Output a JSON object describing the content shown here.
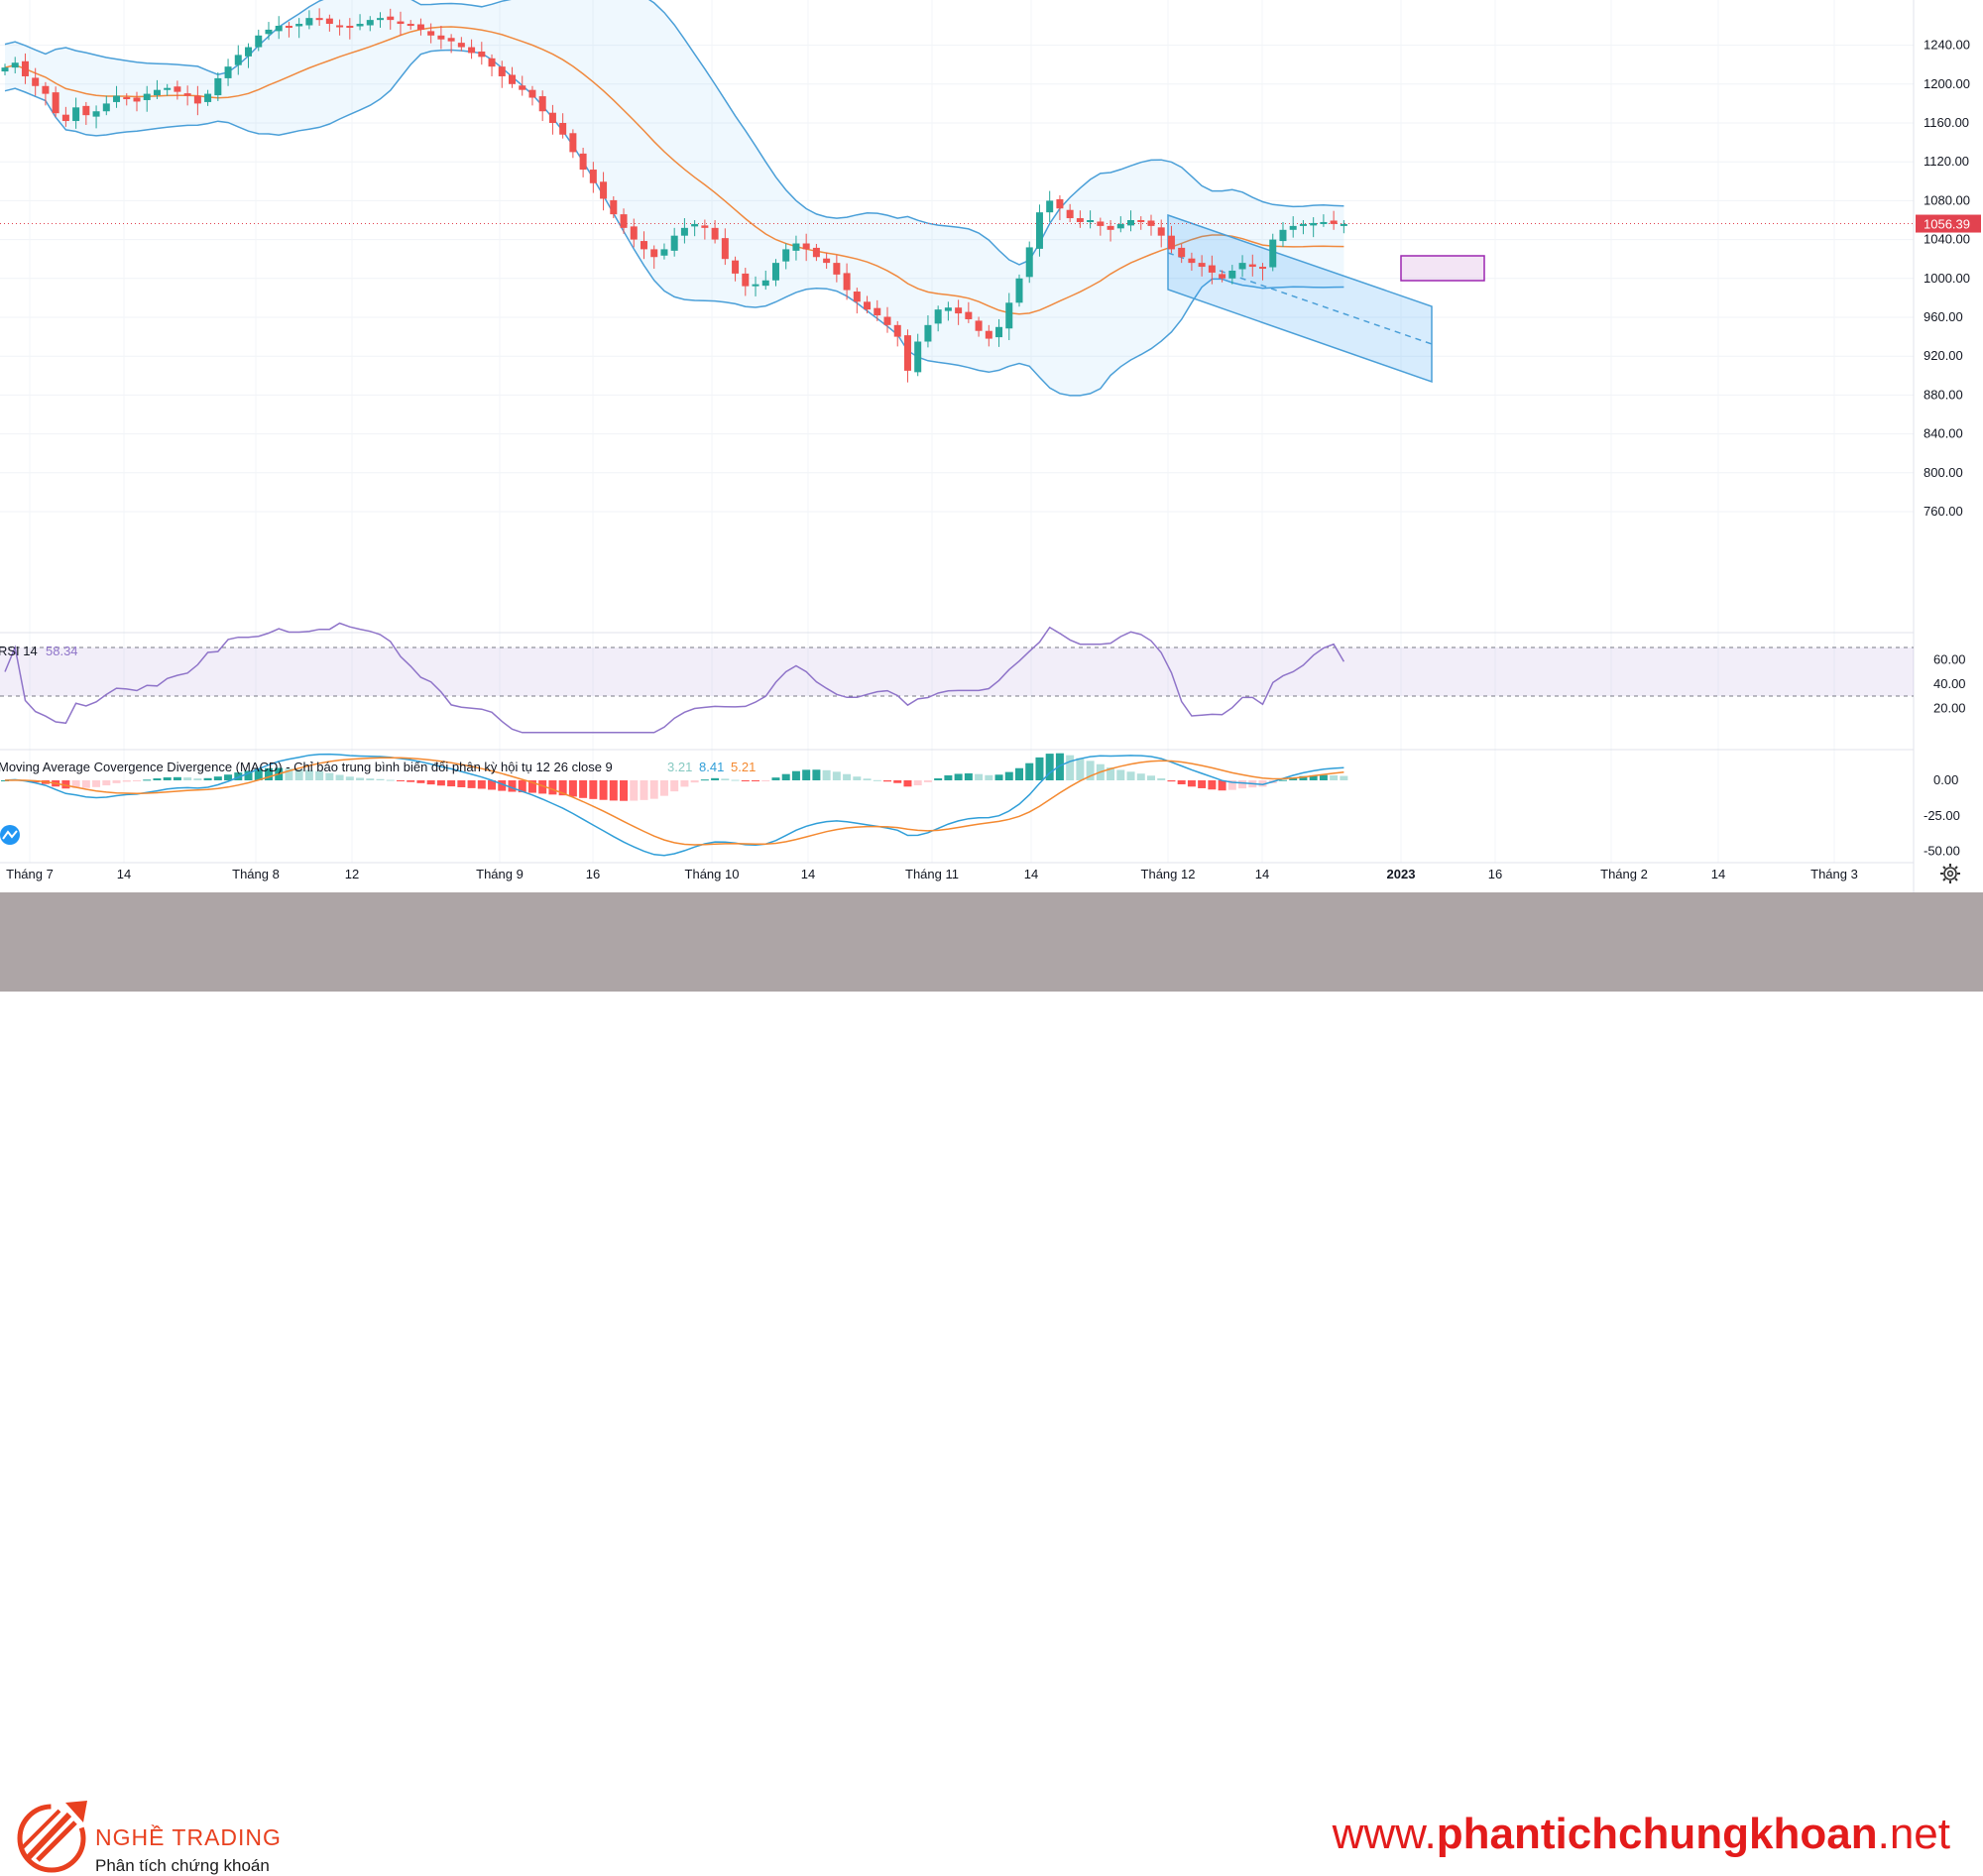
{
  "chart_data": {
    "type": "candlestick",
    "x_tick_labels": [
      "Tháng 7",
      "14",
      "Tháng 8",
      "12",
      "Tháng 9",
      "16",
      "Tháng 10",
      "14",
      "Tháng 11",
      "14",
      "Tháng 12",
      "14",
      "2023",
      "16",
      "Tháng 2",
      "14",
      "Tháng 3"
    ],
    "price_axis": {
      "ticks": [
        "1240.00",
        "1200.00",
        "1160.00",
        "1120.00",
        "1080.00",
        "1040.00",
        "1000.00",
        "960.00",
        "920.00",
        "880.00",
        "840.00",
        "800.00",
        "760.00"
      ],
      "range": [
        752,
        1272
      ]
    },
    "last_price_label": "1056.39",
    "last_price": 1056.39,
    "closes": [
      1217,
      1222,
      1208,
      1198,
      1190,
      1170,
      1162,
      1176,
      1168,
      1172,
      1180,
      1188,
      1186,
      1182,
      1190,
      1194,
      1196,
      1192,
      1188,
      1180,
      1190,
      1206,
      1218,
      1230,
      1238,
      1250,
      1256,
      1260,
      1258,
      1262,
      1268,
      1266,
      1262,
      1260,
      1258,
      1262,
      1266,
      1268,
      1266,
      1262,
      1260,
      1256,
      1250,
      1246,
      1244,
      1238,
      1232,
      1228,
      1218,
      1208,
      1200,
      1194,
      1186,
      1172,
      1160,
      1148,
      1130,
      1112,
      1098,
      1082,
      1066,
      1052,
      1040,
      1030,
      1022,
      1030,
      1044,
      1052,
      1056,
      1052,
      1040,
      1020,
      1005,
      992,
      994,
      998,
      1016,
      1030,
      1036,
      1030,
      1022,
      1016,
      1004,
      988,
      976,
      968,
      962,
      952,
      940,
      905,
      935,
      952,
      968,
      970,
      964,
      958,
      946,
      938,
      950,
      975,
      1000,
      1032,
      1068,
      1080,
      1072,
      1062,
      1058,
      1060,
      1054,
      1050,
      1056,
      1060,
      1058,
      1054,
      1044,
      1030,
      1022,
      1016,
      1012,
      1006,
      1000,
      1008,
      1016,
      1012,
      1010,
      1040,
      1050,
      1054,
      1056,
      1057,
      1058,
      1056,
      1056
    ],
    "series": [
      {
        "name": "RSI 14",
        "last_value": "58.34",
        "range": [
          0,
          100
        ],
        "upper_band": 70,
        "lower_band": 30,
        "ticks": [
          "60.00",
          "40.00",
          "20.00"
        ]
      },
      {
        "name": "Moving Average Covergence Divergence (MACD) - Chỉ báo trung bình biến đổi phân kỳ hội tụ 12 26 close 9",
        "values_label": [
          "3.21",
          "8.41",
          "5.21"
        ],
        "ticks": [
          "0.00",
          "-25.00",
          "-50.00"
        ],
        "range": [
          -62,
          38
        ]
      }
    ],
    "colors": {
      "up": "#26a69a",
      "down": "#ef5350",
      "band": "#4a9fd8",
      "basis": "#f0893e",
      "rsi": "#8f74c9",
      "macd": "#2f9ed8",
      "signal": "#f48930",
      "last_price_bg": "#e2424f"
    },
    "bollinger_bands": {
      "length": 20,
      "mult": 2
    }
  },
  "footer": {
    "brand_name": "NGHỀ TRADING",
    "brand_tagline": "Phân tích chứng khoán",
    "website_prefix": "www.",
    "website_bold": "phantichchungkhoan",
    "website_suffix": ".net"
  }
}
